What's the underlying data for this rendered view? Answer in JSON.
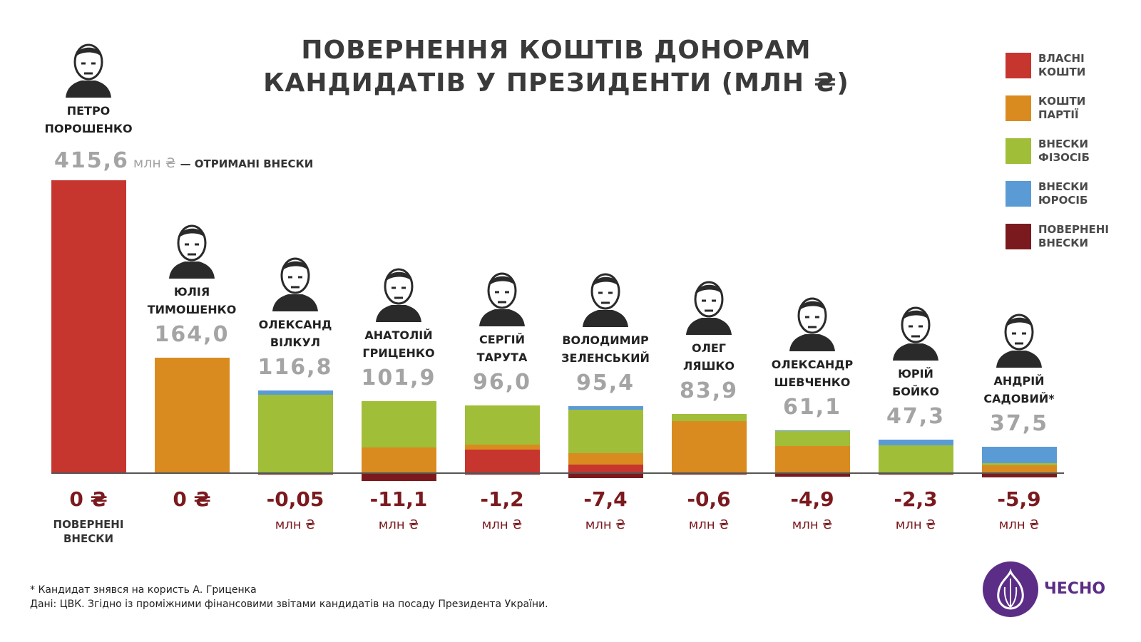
{
  "title_lines": [
    "ПОВЕРНЕННЯ КОШТІВ ДОНОРАМ",
    "КАНДИДАТІВ У ПРЕЗИДЕНТИ (МЛН ₴)"
  ],
  "legend": [
    {
      "label": "ВЛАСНІ КОШТИ",
      "color": "#c6352e"
    },
    {
      "label": "КОШТИ ПАРТІЇ",
      "color": "#da8b1f"
    },
    {
      "label": "ВНЕСКИ ФІЗОСІБ",
      "color": "#a0be38"
    },
    {
      "label": "ВНЕСКИ ЮРОСІБ",
      "color": "#5b9bd5"
    },
    {
      "label": "ПОВЕРНЕНІ ВНЕСКИ",
      "color": "#7b1a1e"
    }
  ],
  "first_value_unit": "млн ₴",
  "first_value_note": "— ОТРИМАНІ ВНЕСКИ",
  "returned_caption": "ПОВЕРНЕНІ ВНЕСКИ",
  "chart_data": {
    "type": "bar",
    "stacked": true,
    "categories": [
      "ПЕТРО ПОРОШЕНКО",
      "ЮЛІЯ ТИМОШЕНКО",
      "ОЛЕКСАНД ВІЛКУЛ",
      "АНАТОЛІЙ ГРИЦЕНКО",
      "СЕРГІЙ ТАРУТА",
      "ВОЛОДИМИР ЗЕЛЕНСЬКИЙ",
      "ОЛЕГ ЛЯШКО",
      "ОЛЕКСАНДР ШЕВЧЕНКО",
      "ЮРІЙ БОЙКО",
      "АНДРІЙ САДОВИЙ*"
    ],
    "name_lines": [
      [
        "ПЕТРО",
        "ПОРОШЕНКО"
      ],
      [
        "ЮЛІЯ",
        "ТИМОШЕНКО"
      ],
      [
        "ОЛЕКСАНД",
        "ВІЛКУЛ"
      ],
      [
        "АНАТОЛІЙ",
        "ГРИЦЕНКО"
      ],
      [
        "СЕРГІЙ",
        "ТАРУТА"
      ],
      [
        "ВОЛОДИМИР",
        "ЗЕЛЕНСЬКИЙ"
      ],
      [
        "ОЛЕГ",
        "ЛЯШКО"
      ],
      [
        "ОЛЕКСАНДР",
        "ШЕВЧЕНКО"
      ],
      [
        "ЮРІЙ",
        "БОЙКО"
      ],
      [
        "АНДРІЙ",
        "САДОВИЙ*"
      ]
    ],
    "totals": [
      415.6,
      164.0,
      116.8,
      101.9,
      96.0,
      95.4,
      83.9,
      61.1,
      47.3,
      37.5
    ],
    "total_labels": [
      "415,6",
      "164,0",
      "116,8",
      "101,9",
      "96,0",
      "95,4",
      "83,9",
      "61,1",
      "47,3",
      "37,5"
    ],
    "series": [
      {
        "name": "ВЛАСНІ КОШТИ",
        "values": [
          415.6,
          0,
          0,
          0,
          33,
          12,
          0,
          0,
          0,
          1.5
        ]
      },
      {
        "name": "КОШТИ ПАРТІЇ",
        "values": [
          0,
          164.0,
          0,
          36,
          7,
          16,
          73.9,
          38.1,
          0,
          10
        ]
      },
      {
        "name": "ВНЕСКИ ФІЗОСІБ",
        "values": [
          0,
          0,
          110.8,
          65.9,
          56,
          61.4,
          10,
          22,
          39.3,
          3
        ]
      },
      {
        "name": "ВНЕСКИ ЮРОСІБ",
        "values": [
          0,
          0,
          6,
          0,
          0,
          6,
          0,
          1,
          8,
          23
        ]
      },
      {
        "name": "ПОВЕРНЕНІ ВНЕСКИ",
        "values": [
          0,
          0,
          -0.05,
          -11.1,
          -1.2,
          -7.4,
          -0.6,
          -4.9,
          -2.3,
          -5.9
        ]
      }
    ],
    "returned_labels": [
      "0 ₴",
      "0 ₴",
      "-0,05",
      "-11,1",
      "-1,2",
      "-7,4",
      "-0,6",
      "-4,9",
      "-2,3",
      "-5,9"
    ],
    "returned_unit": "млн ₴",
    "ylim": [
      -15,
      420
    ]
  },
  "footnotes": [
    "* Кандидат знявся на користь А. Гриценка",
    "Дані: ЦВК. Згідно із проміжними фінансовими звітами кандидатів на посаду Президента України."
  ],
  "logo_text": "ЧЕСНО"
}
